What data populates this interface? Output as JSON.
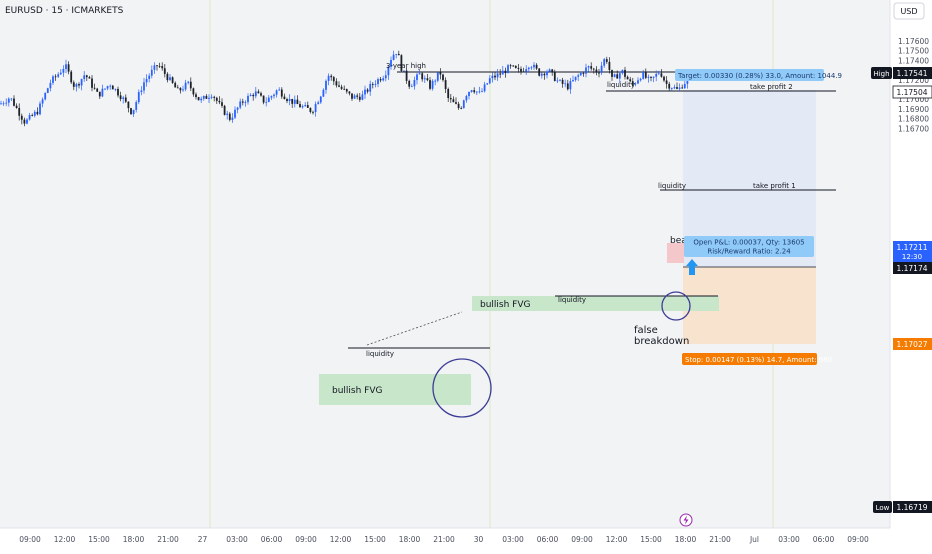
{
  "header": {
    "symbol_label": "EURUSD · 15 · ICMARKETS",
    "currency": "USD"
  },
  "colors": {
    "background": "#f2f3f4",
    "candle": "#2962ff",
    "candle_dark": "#1c2128",
    "fvg": "#c8e6c9",
    "target_zone": "#e3eaf5",
    "stop_zone": "#f8e3cf",
    "badge_high": "#131722",
    "badge_current": "#2962ff",
    "badge_stop": "#f57c00",
    "circle": "#3c3c96",
    "short_zone": "#f4c7cb"
  },
  "chart_data": {
    "type": "candlestick",
    "timeframe": "15",
    "ylim": [
      1.1666,
      1.1768
    ],
    "y_ticks": [
      "1.17600",
      "1.17500",
      "1.17400",
      "1.17300",
      "1.17200",
      "1.17100",
      "1.17000",
      "1.16900",
      "1.16800",
      "1.16700"
    ],
    "x_ticks": [
      "09:00",
      "12:00",
      "15:00",
      "18:00",
      "21:00",
      "27",
      "03:00",
      "06:00",
      "09:00",
      "12:00",
      "15:00",
      "18:00",
      "21:00",
      "30",
      "03:00",
      "06:00",
      "09:00",
      "12:00",
      "15:00",
      "18:00",
      "21:00",
      "Jul",
      "03:00",
      "06:00",
      "09:00"
    ],
    "price_path": [
      [
        0,
        1.1695
      ],
      [
        10,
        1.1702
      ],
      [
        25,
        1.1676
      ],
      [
        38,
        1.1688
      ],
      [
        50,
        1.1717
      ],
      [
        60,
        1.1728
      ],
      [
        65,
        1.1735
      ],
      [
        75,
        1.1712
      ],
      [
        85,
        1.1726
      ],
      [
        98,
        1.1704
      ],
      [
        110,
        1.1716
      ],
      [
        122,
        1.1702
      ],
      [
        132,
        1.1686
      ],
      [
        143,
        1.1716
      ],
      [
        150,
        1.1726
      ],
      [
        158,
        1.1736
      ],
      [
        168,
        1.1722
      ],
      [
        178,
        1.1708
      ],
      [
        188,
        1.1716
      ],
      [
        200,
        1.1698
      ],
      [
        212,
        1.1706
      ],
      [
        222,
        1.169
      ],
      [
        230,
        1.168
      ],
      [
        242,
        1.1697
      ],
      [
        255,
        1.1707
      ],
      [
        265,
        1.1697
      ],
      [
        278,
        1.171
      ],
      [
        288,
        1.17
      ],
      [
        300,
        1.1693
      ],
      [
        312,
        1.1688
      ],
      [
        320,
        1.1703
      ],
      [
        328,
        1.1725
      ],
      [
        340,
        1.1712
      ],
      [
        352,
        1.1702
      ],
      [
        362,
        1.1703
      ],
      [
        372,
        1.1715
      ],
      [
        385,
        1.1726
      ],
      [
        392,
        1.1745
      ],
      [
        397,
        1.175
      ],
      [
        402,
        1.173
      ],
      [
        410,
        1.1714
      ],
      [
        420,
        1.1726
      ],
      [
        430,
        1.1713
      ],
      [
        440,
        1.1728
      ],
      [
        448,
        1.1701
      ],
      [
        455,
        1.1694
      ],
      [
        460,
        1.169
      ],
      [
        465,
        1.1704
      ],
      [
        472,
        1.1712
      ],
      [
        480,
        1.1705
      ],
      [
        490,
        1.1721
      ],
      [
        500,
        1.1726
      ],
      [
        510,
        1.1733
      ],
      [
        520,
        1.1728
      ],
      [
        530,
        1.1737
      ],
      [
        540,
        1.1726
      ],
      [
        548,
        1.173
      ],
      [
        558,
        1.1718
      ],
      [
        568,
        1.1713
      ],
      [
        578,
        1.1724
      ],
      [
        588,
        1.1733
      ],
      [
        598,
        1.1728
      ],
      [
        606,
        1.1744
      ],
      [
        612,
        1.172
      ],
      [
        622,
        1.1729
      ],
      [
        632,
        1.1714
      ],
      [
        642,
        1.1726
      ],
      [
        650,
        1.1718
      ],
      [
        660,
        1.1729
      ],
      [
        666,
        1.1716
      ],
      [
        672,
        1.1713
      ],
      [
        678,
        1.1709
      ],
      [
        684,
        1.1717
      ],
      [
        688,
        1.1719
      ]
    ],
    "levels": [
      {
        "label": "3-year high",
        "price": 1.17541
      },
      {
        "label": "liquidity",
        "price": 1.17504
      },
      {
        "label": "take profit 2",
        "price": 1.17504
      },
      {
        "label": "liquidity",
        "price": 1.17314
      },
      {
        "label": "take profit 1",
        "price": 1.17314
      },
      {
        "label": "liquidity",
        "price": 1.17128
      },
      {
        "label": "liquidity",
        "price": 1.17028
      }
    ],
    "zones": [
      {
        "label": "bullish FVG",
        "from": 1.1697,
        "to": 1.16933
      },
      {
        "label": "bullish FVG",
        "from": 1.17128,
        "to": 1.17095
      }
    ],
    "position": {
      "entry": 1.17174,
      "target": 1.17504,
      "stop": 1.17027,
      "target_label": "Target: 0.00330 (0.28%) 33.0, Amount: 1044.9",
      "open_pl_label": "Open P&L: 0.00037, Qty: 13605",
      "risk_reward_label": "Risk/Reward Ratio: 2.24",
      "stop_label": "Stop: 0.00147 (0.13%) 14.7, Amount: 980"
    },
    "annotations": [
      "bearish",
      "false",
      "breakdown"
    ],
    "price_badges": [
      {
        "label": "High",
        "value": "1.17541"
      },
      {
        "value": "1.17504"
      },
      {
        "value": "1.17211",
        "countdown": "12:30"
      },
      {
        "value": "1.17174"
      },
      {
        "value": "1.17027"
      },
      {
        "label": "Low",
        "value": "1.16719"
      }
    ]
  }
}
